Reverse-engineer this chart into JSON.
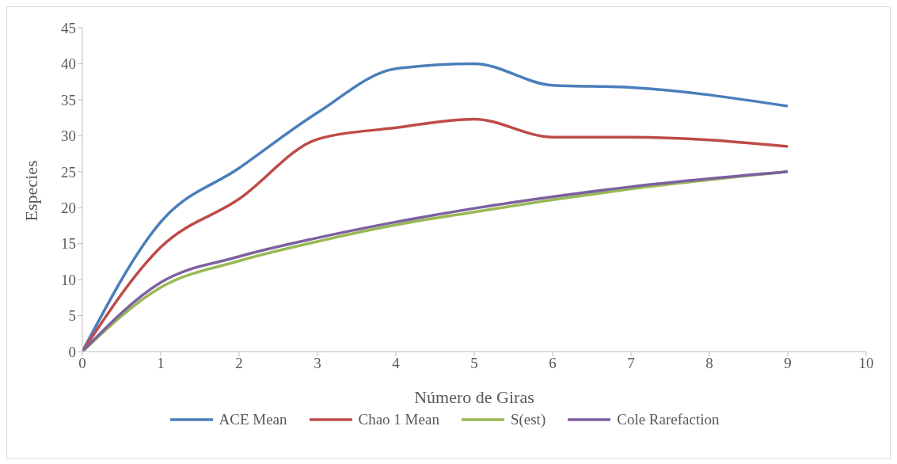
{
  "chart_data": {
    "type": "line",
    "xlabel": "Número de Giras",
    "ylabel": "Especies",
    "x": [
      0,
      1,
      2,
      3,
      4,
      5,
      6,
      7,
      9
    ],
    "series": [
      {
        "name": "ACE Mean",
        "color": "#4a7ebb",
        "values": [
          0,
          18,
          25.5,
          33.2,
          39.3,
          40,
          37,
          36.7,
          34.1
        ]
      },
      {
        "name": "Chao 1 Mean",
        "color": "#be4b48",
        "values": [
          0,
          14.5,
          21.2,
          29.5,
          31.1,
          32.3,
          29.8,
          29.8,
          28.5
        ]
      },
      {
        "name": "S(est)",
        "color": "#98b954",
        "values": [
          0,
          8.9,
          12.6,
          15.3,
          17.6,
          19.4,
          21.1,
          22.6,
          25
        ]
      },
      {
        "name": "Cole Rarefaction",
        "color": "#7d60a0",
        "values": [
          0,
          9.6,
          13.2,
          15.8,
          18,
          19.9,
          21.5,
          22.9,
          25
        ]
      }
    ],
    "xlim": [
      0,
      10
    ],
    "xticks": [
      0,
      1,
      2,
      3,
      4,
      5,
      6,
      7,
      8,
      9,
      10
    ],
    "ylim": [
      0,
      45
    ],
    "yticks": [
      0,
      5,
      10,
      15,
      20,
      25,
      30,
      35,
      40,
      45
    ],
    "grid": false,
    "legend": "bottom",
    "marker": "none",
    "line_style": "solid"
  }
}
